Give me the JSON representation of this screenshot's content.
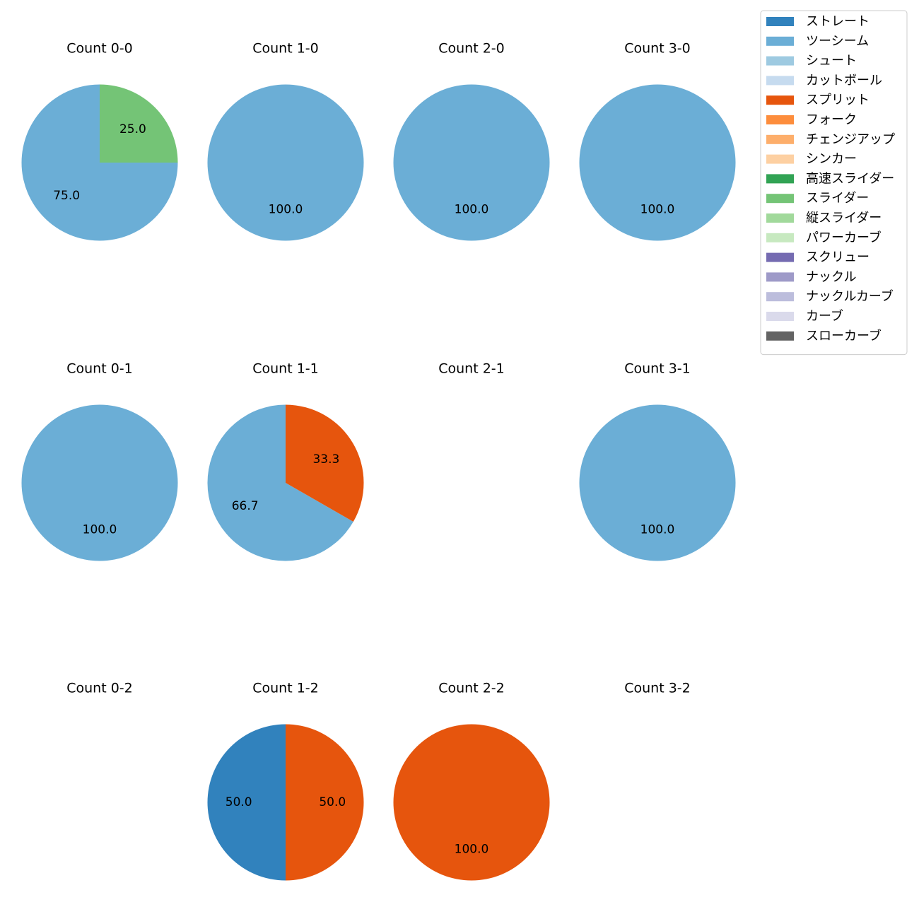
{
  "chart_data": {
    "type": "pie",
    "legend": {
      "placement": "top-right",
      "entries": [
        {
          "name": "ストレート",
          "color": "#3182bd"
        },
        {
          "name": "ツーシーム",
          "color": "#6baed6"
        },
        {
          "name": "シュート",
          "color": "#9ecae1"
        },
        {
          "name": "カットボール",
          "color": "#c6dbef"
        },
        {
          "name": "スプリット",
          "color": "#e6550d"
        },
        {
          "name": "フォーク",
          "color": "#fd8d3c"
        },
        {
          "name": "チェンジアップ",
          "color": "#fdae6b"
        },
        {
          "name": "シンカー",
          "color": "#fdd0a2"
        },
        {
          "name": "高速スライダー",
          "color": "#31a354"
        },
        {
          "name": "スライダー",
          "color": "#74c476"
        },
        {
          "name": "縦スライダー",
          "color": "#a1d99b"
        },
        {
          "name": "パワーカーブ",
          "color": "#c7e9c0"
        },
        {
          "name": "スクリュー",
          "color": "#756bb1"
        },
        {
          "name": "ナックル",
          "color": "#9e9ac8"
        },
        {
          "name": "ナックルカーブ",
          "color": "#bcbddc"
        },
        {
          "name": "カーブ",
          "color": "#dadaeb"
        },
        {
          "name": "スローカーブ",
          "color": "#636363"
        }
      ]
    },
    "panels": [
      {
        "title": "Count 0-0",
        "slices": [
          {
            "pitch": "ツーシーム",
            "value": 75.0,
            "label": "75.0"
          },
          {
            "pitch": "スライダー",
            "value": 25.0,
            "label": "25.0"
          }
        ]
      },
      {
        "title": "Count 1-0",
        "slices": [
          {
            "pitch": "ツーシーム",
            "value": 100.0,
            "label": "100.0"
          }
        ]
      },
      {
        "title": "Count 2-0",
        "slices": [
          {
            "pitch": "ツーシーム",
            "value": 100.0,
            "label": "100.0"
          }
        ]
      },
      {
        "title": "Count 3-0",
        "slices": [
          {
            "pitch": "ツーシーム",
            "value": 100.0,
            "label": "100.0"
          }
        ]
      },
      {
        "title": "Count 0-1",
        "slices": [
          {
            "pitch": "ツーシーム",
            "value": 100.0,
            "label": "100.0"
          }
        ]
      },
      {
        "title": "Count 1-1",
        "slices": [
          {
            "pitch": "ツーシーム",
            "value": 66.7,
            "label": "66.7"
          },
          {
            "pitch": "スプリット",
            "value": 33.3,
            "label": "33.3"
          }
        ]
      },
      {
        "title": "Count 2-1",
        "slices": []
      },
      {
        "title": "Count 3-1",
        "slices": [
          {
            "pitch": "ツーシーム",
            "value": 100.0,
            "label": "100.0"
          }
        ]
      },
      {
        "title": "Count 0-2",
        "slices": []
      },
      {
        "title": "Count 1-2",
        "slices": [
          {
            "pitch": "ストレート",
            "value": 50.0,
            "label": "50.0"
          },
          {
            "pitch": "スプリット",
            "value": 50.0,
            "label": "50.0"
          }
        ]
      },
      {
        "title": "Count 2-2",
        "slices": [
          {
            "pitch": "スプリット",
            "value": 100.0,
            "label": "100.0"
          }
        ]
      },
      {
        "title": "Count 3-2",
        "slices": []
      }
    ]
  }
}
